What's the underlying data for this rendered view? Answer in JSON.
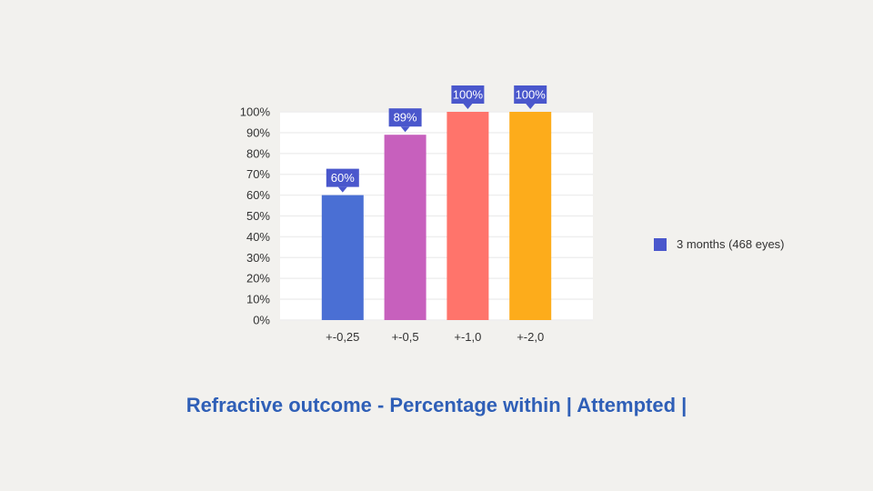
{
  "chart_data": {
    "type": "bar",
    "title": "Refractive outcome - Percentage within | Attempted |",
    "xlabel": "",
    "ylabel": "",
    "categories": [
      "+-0,25",
      "+-0,5",
      "+-1,0",
      "+-2,0"
    ],
    "series": [
      {
        "name": "3 months (468 eyes)",
        "values": [
          60,
          89,
          100,
          100
        ]
      }
    ],
    "data_labels": [
      "60%",
      "89%",
      "100%",
      "100%"
    ],
    "bar_colors": [
      "#4a6fd4",
      "#c760bd",
      "#ff746b",
      "#fdac1b"
    ],
    "legend_color": "#4a57cc",
    "label_box_color": "#4a57cc",
    "ylim": [
      0,
      100
    ],
    "yticks": [
      0,
      10,
      20,
      30,
      40,
      50,
      60,
      70,
      80,
      90,
      100
    ],
    "ytick_labels": [
      "0%",
      "10%",
      "20%",
      "30%",
      "40%",
      "50%",
      "60%",
      "70%",
      "80%",
      "90%",
      "100%"
    ],
    "grid": true,
    "legend_position": "right"
  },
  "colors": {
    "background": "#f2f1ee",
    "plot_area": "#ffffff",
    "gridline": "#eeeeee",
    "title": "#2f5fb7"
  }
}
